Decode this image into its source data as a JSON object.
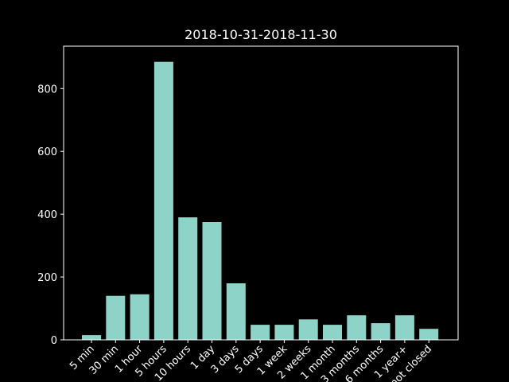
{
  "chart_data": {
    "type": "bar",
    "title": "2018-10-31-2018-11-30",
    "xlabel": "",
    "ylabel": "",
    "categories": [
      "5 min",
      "30 min",
      "1 hour",
      "5 hours",
      "10 hours",
      "1 day",
      "3 days",
      "5 days",
      "1 week",
      "2 weeks",
      "1 month",
      "3 months",
      "6 months",
      "1 year+",
      "not closed"
    ],
    "values": [
      15,
      140,
      145,
      885,
      390,
      375,
      180,
      48,
      48,
      65,
      48,
      78,
      53,
      78,
      35
    ],
    "ylim": [
      0,
      935
    ],
    "yticks": [
      0,
      200,
      400,
      600,
      800
    ],
    "bar_color": "#8dd3c7",
    "background": "#000000",
    "foreground": "#ffffff",
    "grid": false,
    "legend": "none"
  }
}
